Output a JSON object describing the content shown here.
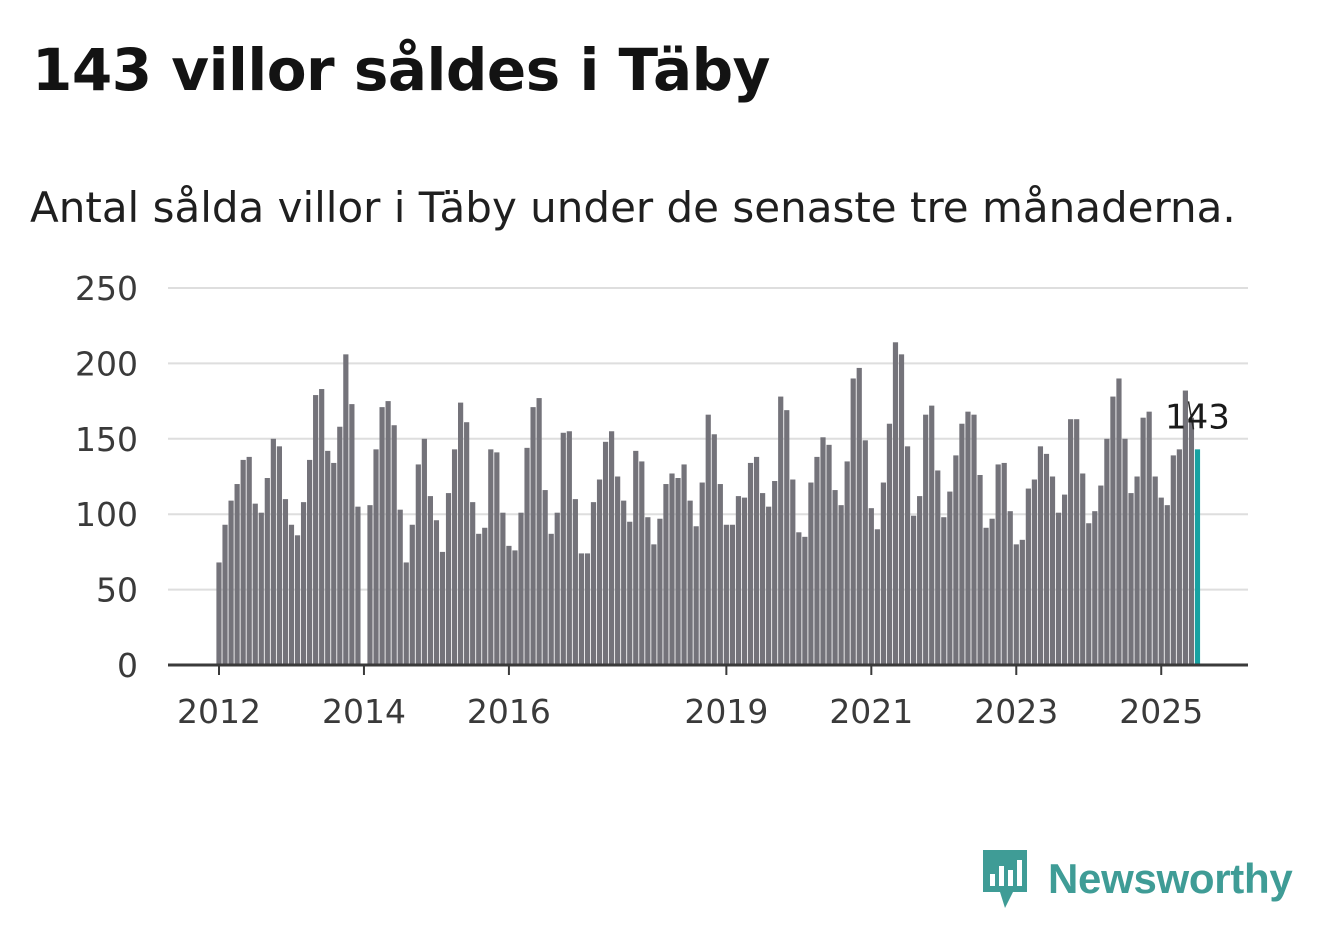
{
  "header": {
    "title": "143 villor såldes i Täby",
    "subtitle": "Antal sålda villor i Täby under de senaste tre månaderna."
  },
  "brand": {
    "name": "Newsworthy",
    "icon": "newsworthy-logo-icon",
    "color": "#3f9c96"
  },
  "colors": {
    "bar": "#74737a",
    "highlight": "#17a2a2",
    "grid": "#dedede",
    "axis": "#3a3a3a"
  },
  "chart_data": {
    "type": "bar",
    "title": "143 villor såldes i Täby",
    "subtitle": "Antal sålda villor i Täby under de senaste tre månaderna.",
    "ylim": [
      0,
      250
    ],
    "yticks": [
      0,
      50,
      100,
      150,
      200,
      250
    ],
    "xticks": [
      "2012",
      "2014",
      "2016",
      "2019",
      "2021",
      "2023",
      "2025"
    ],
    "xtick_month_index": [
      0,
      24,
      48,
      84,
      108,
      132,
      156
    ],
    "start": "2012-01",
    "grid": true,
    "highlight_label": "143",
    "values": [
      68,
      93,
      109,
      120,
      136,
      138,
      107,
      101,
      124,
      150,
      145,
      110,
      93,
      86,
      108,
      136,
      179,
      183,
      142,
      134,
      158,
      206,
      173,
      105,
      null,
      106,
      143,
      171,
      175,
      159,
      103,
      68,
      93,
      133,
      150,
      112,
      96,
      75,
      114,
      143,
      174,
      161,
      108,
      87,
      91,
      143,
      141,
      101,
      79,
      76,
      101,
      144,
      171,
      177,
      116,
      87,
      101,
      154,
      155,
      110,
      74,
      74,
      108,
      123,
      148,
      155,
      125,
      109,
      95,
      142,
      135,
      98,
      80,
      97,
      120,
      127,
      124,
      133,
      109,
      92,
      121,
      166,
      153,
      120,
      93,
      93,
      112,
      111,
      134,
      138,
      114,
      105,
      122,
      178,
      169,
      123,
      88,
      85,
      121,
      138,
      151,
      146,
      116,
      106,
      135,
      190,
      197,
      149,
      104,
      90,
      121,
      160,
      214,
      206,
      145,
      99,
      112,
      166,
      172,
      129,
      98,
      115,
      139,
      160,
      168,
      166,
      126,
      91,
      97,
      133,
      134,
      102,
      80,
      83,
      117,
      123,
      145,
      140,
      125,
      101,
      113,
      163,
      163,
      127,
      94,
      102,
      119,
      150,
      178,
      190,
      150,
      114,
      125,
      164,
      168,
      125,
      111,
      106,
      139,
      143,
      182,
      164,
      143
    ]
  }
}
